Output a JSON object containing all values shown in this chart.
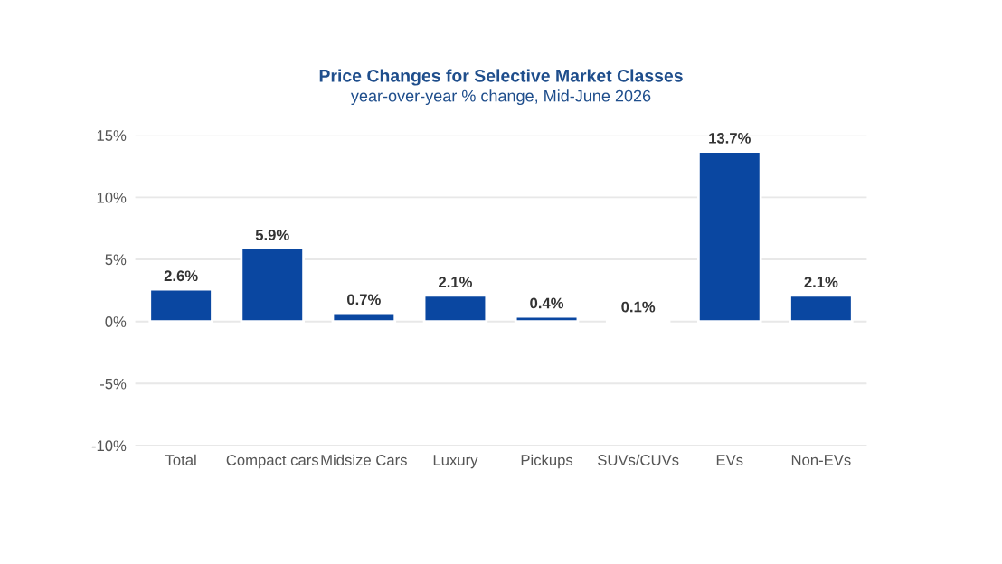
{
  "chart_data": {
    "type": "bar",
    "title": "Price Changes for Selective Market Classes",
    "subtitle": "year-over-year % change, Mid-June 2026",
    "categories": [
      "Total",
      "Compact cars",
      "Midsize Cars",
      "Luxury",
      "Pickups",
      "SUVs/CUVs",
      "EVs",
      "Non-EVs"
    ],
    "values": [
      2.6,
      5.9,
      0.7,
      2.1,
      0.4,
      0.1,
      13.7,
      2.1
    ],
    "value_labels": [
      "2.6%",
      "5.9%",
      "0.7%",
      "2.1%",
      "0.4%",
      "0.1%",
      "13.7%",
      "2.1%"
    ],
    "color": "#0a47a1",
    "ylim": [
      -10,
      15
    ],
    "yticks": [
      {
        "value": -10,
        "label": "-10%"
      },
      {
        "value": -5,
        "label": "-5%"
      },
      {
        "value": 0,
        "label": "0%"
      },
      {
        "value": 5,
        "label": "5%"
      },
      {
        "value": 10,
        "label": "10%"
      },
      {
        "value": 15,
        "label": "15%"
      }
    ],
    "grid": "y"
  }
}
